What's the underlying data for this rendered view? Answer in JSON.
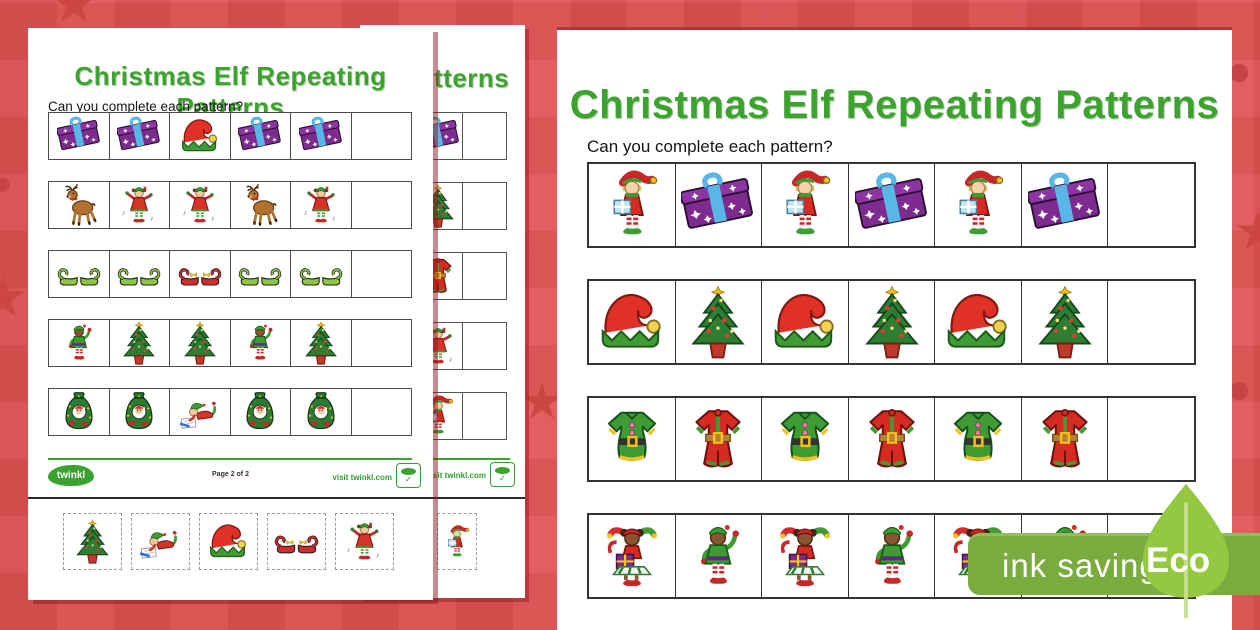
{
  "colors": {
    "background_red": "#e15252",
    "star_red": "#cc4646",
    "accent_green": "#3ca32f",
    "badge_green": "#7aab3e",
    "leaf_green": "#93c840"
  },
  "ink_badge": {
    "label": "ink saving",
    "eco": "Eco"
  },
  "left_front_page": {
    "title": "Christmas Elf Repeating Patterns",
    "subtitle": "Can you complete each pattern?",
    "rows": [
      {
        "cells": [
          "present-purple",
          "present-purple",
          "elf-hat",
          "present-purple",
          "present-purple",
          ""
        ]
      },
      {
        "cells": [
          "reindeer",
          "elf-dancing",
          "elf-dancing",
          "reindeer",
          "elf-dancing",
          ""
        ]
      },
      {
        "cells": [
          "shoes-green",
          "shoes-green",
          "shoes-red",
          "shoes-green",
          "shoes-green",
          ""
        ]
      },
      {
        "cells": [
          "elf-boy-waving",
          "tree",
          "tree",
          "elf-boy-waving",
          "tree",
          ""
        ]
      },
      {
        "cells": [
          "santa-sack",
          "santa-sack",
          "elf-writing",
          "santa-sack",
          "santa-sack",
          ""
        ]
      }
    ],
    "cutouts": [
      "tree",
      "elf-writing",
      "elf-hat",
      "shoes-red",
      "elf-dancing"
    ],
    "footer": {
      "brand": "twinkl",
      "page_label": "Page 2 of 2",
      "visit_label": "visit twinkl.com"
    }
  },
  "left_back_page": {
    "title_fragment": "tterns",
    "rows": [
      "present-purple",
      "tree",
      "clothes-red",
      "elf-dancing",
      "elf-with-present"
    ],
    "cutouts": [
      "elf-with-present"
    ],
    "footer": {
      "visit_label": "visit twinkl.com"
    }
  },
  "right_page": {
    "title": "Christmas Elf Repeating Patterns",
    "subtitle": "Can you complete each pattern?",
    "rows": [
      {
        "cells": [
          "elf-with-present",
          "present-purple",
          "elf-with-present",
          "present-purple",
          "elf-with-present",
          "present-purple",
          ""
        ]
      },
      {
        "cells": [
          "elf-hat",
          "tree",
          "elf-hat",
          "tree",
          "elf-hat",
          "tree",
          ""
        ]
      },
      {
        "cells": [
          "clothes-green",
          "clothes-red",
          "clothes-green",
          "clothes-red",
          "clothes-green",
          "clothes-red",
          ""
        ]
      },
      {
        "cells": [
          "elf-girl-present",
          "elf-boy-waving",
          "elf-girl-present",
          "elf-boy-waving",
          "elf-girl-present",
          "elf-boy-waving",
          ""
        ]
      }
    ]
  }
}
